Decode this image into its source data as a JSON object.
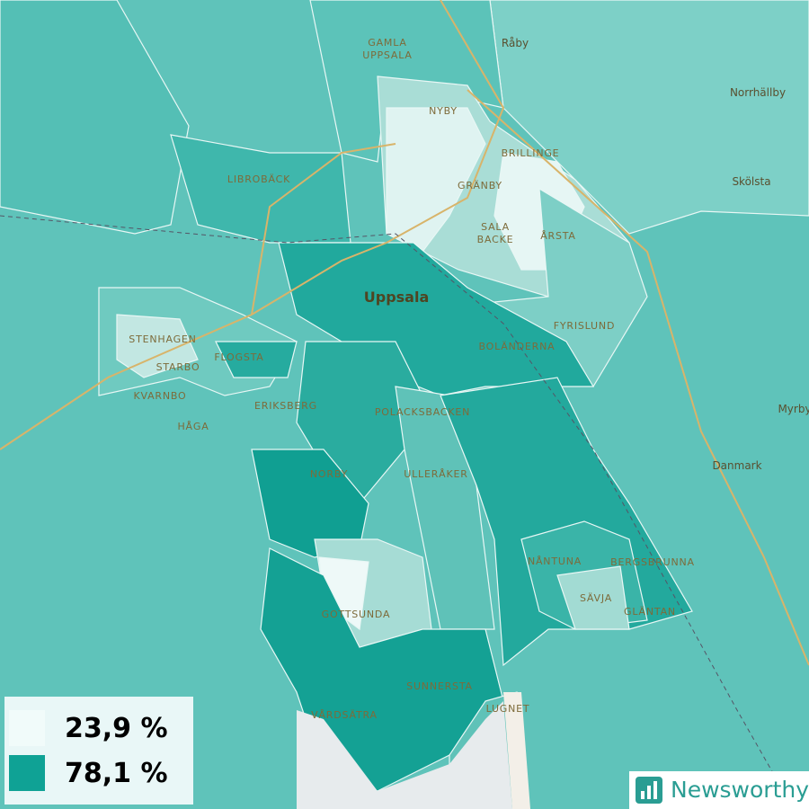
{
  "places": [
    "Råby",
    "Norrhällby",
    "Skölsta",
    "Myrby",
    "Danmark",
    [
      "GAMLA",
      "UPPSALA"
    ],
    "NYBY",
    "BRILLINGE",
    "LIBROBÄCK",
    "GRÄNBY",
    [
      "SALA",
      "BACKE"
    ],
    "ÅRSTA",
    "Uppsala",
    "FYRISLUND",
    "STENHAGEN",
    "STARBO",
    "FLOGSTA",
    "BOLÄNDERNA",
    "KVARNBO",
    "HÅGA",
    "ERIKSBERG",
    "POLACKSBACKEN",
    "NORBY",
    "ULLERÅKER",
    "NÅNTUNA",
    "BERGSBRUNNA",
    "SÄVJA",
    "GLÄNTAN",
    "GOTTSUNDA",
    "SUNNERSTA",
    "VÅRDSÄTRA",
    "LUGNET"
  ],
  "legend": [
    {
      "value": 23.9,
      "label": "23,9 %",
      "color": "#f1fbfa"
    },
    {
      "value": 78.1,
      "label": "78,1 %",
      "color": "#0fa295"
    }
  ],
  "brand": "Newsworthy"
}
